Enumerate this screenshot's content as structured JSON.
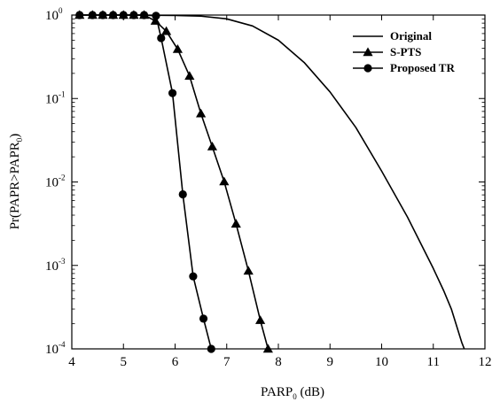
{
  "chart_data": {
    "type": "line",
    "title": "",
    "xlabel": "PARP",
    "xlabel_sub": "0",
    "xlabel_unit": " (dB)",
    "ylabel": "Pr(PAPR>PAPR",
    "ylabel_sub": "0",
    "ylabel_end": ")",
    "xlim": [
      4,
      12
    ],
    "ylim": [
      0.0001,
      1
    ],
    "yscale": "log",
    "grid": false,
    "legend_position": "top-right",
    "x_ticks": [
      "4",
      "5",
      "6",
      "7",
      "8",
      "9",
      "10",
      "11",
      "12"
    ],
    "y_ticks": [
      {
        "base": "10",
        "exp": "-4",
        "value": 0.0001
      },
      {
        "base": "10",
        "exp": "-3",
        "value": 0.001
      },
      {
        "base": "10",
        "exp": "-2",
        "value": 0.01
      },
      {
        "base": "10",
        "exp": "-1",
        "value": 0.1
      },
      {
        "base": "10",
        "exp": "0",
        "value": 1
      }
    ],
    "series": [
      {
        "name": "Original",
        "marker": "none",
        "x": [
          4.1,
          5,
          6,
          6.5,
          7,
          7.5,
          8,
          8.5,
          9,
          9.5,
          10,
          10.5,
          11,
          11.2,
          11.35,
          11.45,
          11.55,
          11.6
        ],
        "y": [
          1,
          1,
          0.99,
          0.97,
          0.9,
          0.74,
          0.5,
          0.27,
          0.12,
          0.045,
          0.0135,
          0.0038,
          0.00092,
          0.0005,
          0.0003,
          0.00019,
          0.00012,
          0.0001
        ]
      },
      {
        "name": "S-PTS",
        "marker": "triangle",
        "x": [
          4.15,
          4.4,
          4.6,
          4.8,
          5.0,
          5.2,
          5.4,
          5.62,
          5.83,
          6.05,
          6.28,
          6.5,
          6.72,
          6.95,
          7.18,
          7.42,
          7.65,
          7.8
        ],
        "y": [
          1,
          1,
          1,
          1,
          1,
          1,
          1,
          0.85,
          0.64,
          0.39,
          0.186,
          0.066,
          0.0265,
          0.0101,
          0.00315,
          0.00086,
          0.00022,
          0.0001
        ]
      },
      {
        "name": "Proposed TR",
        "marker": "circle",
        "x": [
          4.15,
          4.4,
          4.6,
          4.8,
          5.0,
          5.2,
          5.4,
          5.63,
          5.73,
          5.95,
          6.15,
          6.35,
          6.55,
          6.7
        ],
        "y": [
          1,
          1,
          1,
          1,
          1,
          1,
          1,
          0.98,
          0.53,
          0.116,
          0.0071,
          0.00074,
          0.00023,
          0.0001
        ]
      }
    ]
  }
}
